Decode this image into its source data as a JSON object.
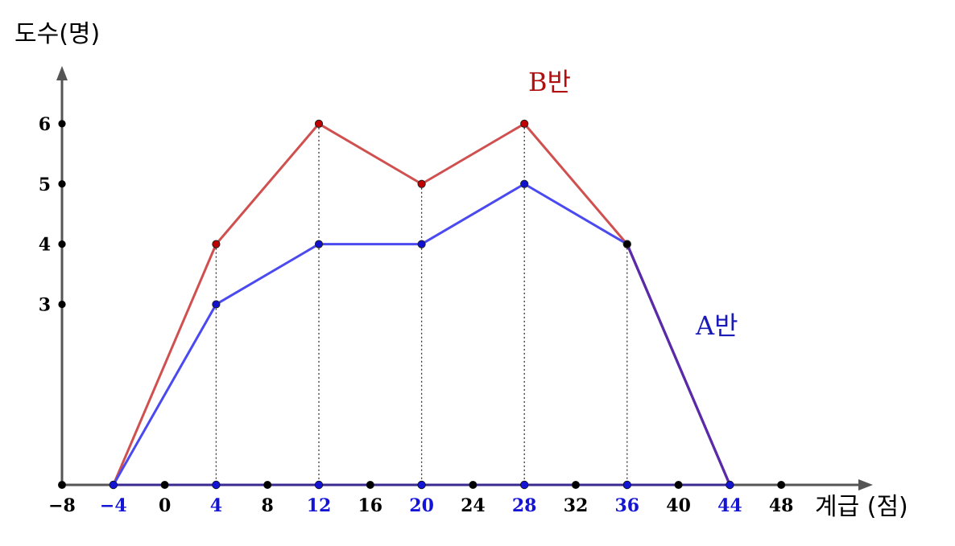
{
  "chart_data": {
    "type": "line",
    "ylabel": "도수(명)",
    "xlabel": "계급 (점)",
    "x_ticks": [
      "−8",
      "−4",
      "0",
      "4",
      "8",
      "12",
      "16",
      "20",
      "24",
      "28",
      "32",
      "36",
      "40",
      "44",
      "48"
    ],
    "x_tick_values": [
      -8,
      -4,
      0,
      4,
      8,
      12,
      16,
      20,
      24,
      28,
      32,
      36,
      40,
      44,
      48
    ],
    "highlighted_x_ticks": [
      -4,
      4,
      12,
      20,
      28,
      36,
      44
    ],
    "y_ticks": [
      "3",
      "4",
      "5",
      "6"
    ],
    "y_tick_values": [
      3,
      4,
      5,
      6
    ],
    "xlim": [
      -8,
      50
    ],
    "ylim": [
      0,
      7
    ],
    "grid": false,
    "series": [
      {
        "name": "B반",
        "color": "#d05050",
        "point_color": "#c00000",
        "x": [
          -4,
          4,
          12,
          20,
          28,
          36,
          44
        ],
        "y": [
          0,
          4,
          6,
          5,
          6,
          4,
          0
        ]
      },
      {
        "name": "A반",
        "color": "#4a4af0",
        "point_color": "#1010d0",
        "x": [
          -4,
          4,
          12,
          20,
          28,
          36,
          44
        ],
        "y": [
          0,
          3,
          4,
          4,
          5,
          4,
          0
        ]
      }
    ],
    "colors": {
      "axis": "#555555",
      "tick_dot": "#000000",
      "highlight_tick": "#1414d4",
      "overlap": "#5a2aa8"
    }
  }
}
